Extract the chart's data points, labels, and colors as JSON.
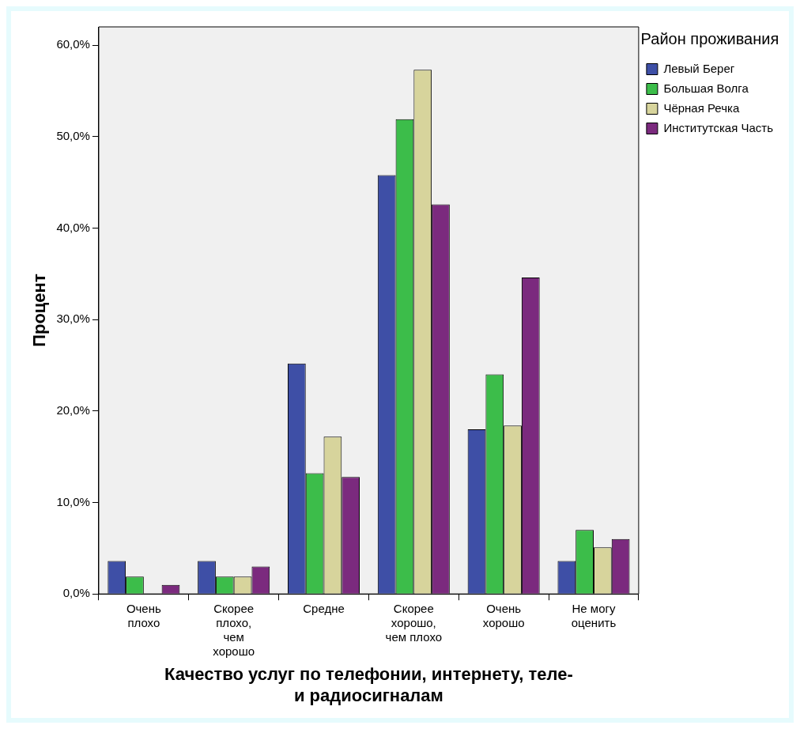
{
  "chart_data": {
    "type": "bar",
    "xlabel": "Качество услуг по телефонии, интернету, теле- и радиосигналам",
    "ylabel": "Процент",
    "legend_title": "Район проживания",
    "legend": "top right",
    "grid": false,
    "categories": [
      "Очень плохо",
      "Скорее плохо, чем хорошо",
      "Средне",
      "Скорее хорошо, чем плохо",
      "Очень хорошо",
      "Не могу оценить"
    ],
    "ylim": [
      0,
      62
    ],
    "yticks": [
      {
        "value": 0,
        "label": "0,0%"
      },
      {
        "value": 10,
        "label": "10,0%"
      },
      {
        "value": 20,
        "label": "20,0%"
      },
      {
        "value": 30,
        "label": "30,0%"
      },
      {
        "value": 40,
        "label": "40,0%"
      },
      {
        "value": 50,
        "label": "50,0%"
      },
      {
        "value": 60,
        "label": "60,0%"
      }
    ],
    "series": [
      {
        "name": "Левый Берег",
        "color": "#3e4fa6",
        "values": [
          3.6,
          3.6,
          25.2,
          45.8,
          18.0,
          3.6
        ]
      },
      {
        "name": "Большая Волга",
        "color": "#3cbd4a",
        "values": [
          1.9,
          1.9,
          13.2,
          51.9,
          24.0,
          7.0
        ]
      },
      {
        "name": "Чёрная Речка",
        "color": "#d7d49c",
        "values": [
          0,
          1.9,
          17.2,
          57.3,
          18.4,
          5.1
        ]
      },
      {
        "name": "Институтская Часть",
        "color": "#7b2a7e",
        "values": [
          1.0,
          3.0,
          12.8,
          42.6,
          34.6,
          6.0
        ]
      }
    ]
  }
}
